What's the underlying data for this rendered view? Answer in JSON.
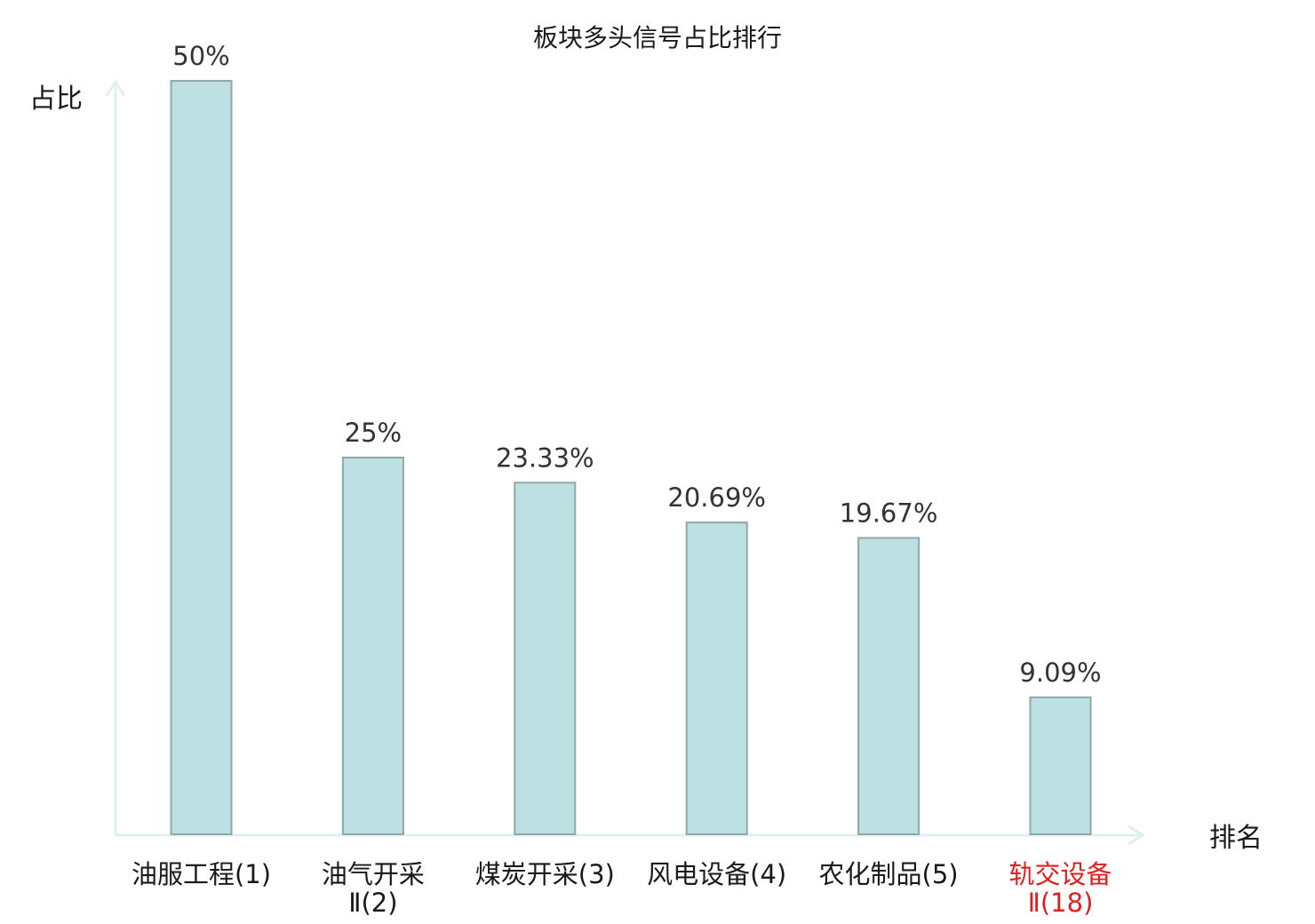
{
  "chart_data": {
    "type": "bar",
    "title": "板块多头信号占比排行",
    "ylabel": "占比",
    "xlabel": "排名",
    "categories": [
      [
        "油服工程(1)"
      ],
      [
        "油气开采",
        "Ⅱ(2)"
      ],
      [
        "煤炭开采(3)"
      ],
      [
        "风电设备(4)"
      ],
      [
        "农化制品(5)"
      ],
      [
        "轨交设备",
        "Ⅱ(18)"
      ]
    ],
    "values": [
      50,
      25,
      23.33,
      20.69,
      19.67,
      9.09
    ],
    "value_labels": [
      "50%",
      "25%",
      "23.33%",
      "20.69%",
      "19.67%",
      "9.09%"
    ],
    "highlight_index": 5,
    "ylim": [
      0,
      50
    ],
    "grid": false,
    "colors": {
      "bar_fill": "#bde0e3",
      "bar_stroke": "#8fa9ab",
      "axis": "#dff1ee",
      "label": "#333333",
      "category": "#1a1a1a",
      "highlight": "#e02020"
    }
  }
}
